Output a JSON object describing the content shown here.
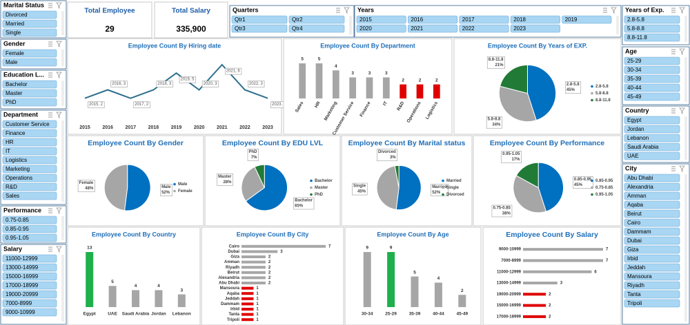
{
  "kpis": [
    {
      "title": "Total Employee",
      "value": "29"
    },
    {
      "title": "Total Salary",
      "value": "335,900"
    }
  ],
  "slicers": [
    {
      "title": "Marital Status",
      "items": [
        "Divorced",
        "Married",
        "Single"
      ]
    },
    {
      "title": "Gender",
      "items": [
        "Female",
        "Male"
      ]
    },
    {
      "title": "Education L...",
      "items": [
        "Bachelor",
        "Master",
        "PhD"
      ]
    },
    {
      "title": "Department",
      "items": [
        "Customer Service",
        "Finance",
        "HR",
        "IT",
        "Logistics",
        "Marketing",
        "Operations",
        "R&D",
        "Sales"
      ]
    },
    {
      "title": "Performance",
      "items": [
        "0.75-0.85",
        "0.85-0.95",
        "0.95-1.05"
      ]
    },
    {
      "title": "Salary",
      "items": [
        "11000-12999",
        "13000-14999",
        "15000-16999",
        "17000-18999",
        "19000-20999",
        "7000-8999",
        "9000-10999"
      ]
    },
    {
      "title": "Quarters",
      "items": [
        "Qtr1",
        "Qtr2",
        "Qtr3",
        "Qtr4"
      ]
    },
    {
      "title": "Years",
      "items": [
        "2015",
        "2016",
        "2017",
        "2018",
        "2019",
        "2020",
        "2021",
        "2022",
        "2023"
      ]
    },
    {
      "title": "Years of Exp.",
      "items": [
        "2.8-5.8",
        "5.8-8.8",
        "8.8-11.8"
      ]
    },
    {
      "title": "Age",
      "items": [
        "25-29",
        "30-34",
        "35-39",
        "40-44",
        "45-49"
      ]
    },
    {
      "title": "Country",
      "items": [
        "Egypt",
        "Jordan",
        "Lebanon",
        "Saudi Arabia",
        "UAE"
      ]
    },
    {
      "title": "City",
      "items": [
        "Abu Dhabi",
        "Alexandria",
        "Amman",
        "Aqaba",
        "Beirut",
        "Cairo",
        "Dammam",
        "Dubai",
        "Giza",
        "Irbid",
        "Jeddah",
        "Mansoura",
        "Riyadh",
        "Tanta",
        "Tripoli"
      ]
    }
  ],
  "chart_data": [
    {
      "type": "line",
      "title": "Employee Count By Hiring date",
      "categories": [
        "2015",
        "2016",
        "2017",
        "2018",
        "2019",
        "2020",
        "2021",
        "2022",
        "2023"
      ],
      "values": [
        2,
        3,
        2,
        3,
        5,
        3,
        6,
        3,
        2
      ],
      "value_labels": [
        "2015, 2",
        "2016, 3",
        "2017, 2",
        "2018, 3",
        "2019, 5",
        "2020, 3",
        "2021, 6",
        "2022, 3",
        "2023, 2"
      ],
      "color": "#2e6f8e"
    },
    {
      "type": "bar",
      "title": "Employee Count By Department",
      "categories": [
        "Sales",
        "HR",
        "Marketing",
        "Customer Service",
        "Finance",
        "IT",
        "R&D",
        "Operations",
        "Logistics"
      ],
      "values": [
        5,
        5,
        4,
        3,
        3,
        3,
        2,
        2,
        2
      ],
      "colors": [
        "#a6a6a6",
        "#a6a6a6",
        "#a6a6a6",
        "#a6a6a6",
        "#a6a6a6",
        "#a6a6a6",
        "#e00000",
        "#e00000",
        "#e00000"
      ]
    },
    {
      "type": "pie",
      "title": "Employee Count By Years of EXP.",
      "categories": [
        "2.8-5.8",
        "5.8-8.8",
        "8.8-11.8"
      ],
      "values": [
        45,
        34,
        21
      ],
      "value_labels": [
        "45%",
        "34%",
        "21%"
      ],
      "colors": [
        "#0070c0",
        "#a6a6a6",
        "#217a36"
      ],
      "legend": "right"
    },
    {
      "type": "pie",
      "title": "Employee Count By Gender",
      "categories": [
        "Male",
        "Female"
      ],
      "values": [
        52,
        48
      ],
      "value_labels": [
        "52%",
        "48%"
      ],
      "colors": [
        "#0070c0",
        "#a6a6a6"
      ],
      "legend": "right"
    },
    {
      "type": "pie",
      "title": "Employee Count By EDU LVL",
      "categories": [
        "Bachelor",
        "Master",
        "PhD"
      ],
      "values": [
        65,
        28,
        7
      ],
      "value_labels": [
        "65%",
        "28%",
        "7%"
      ],
      "colors": [
        "#0070c0",
        "#a6a6a6",
        "#217a36"
      ],
      "legend": "right"
    },
    {
      "type": "pie",
      "title": "Employee Count By Marital status",
      "categories": [
        "Married",
        "Single",
        "Divorced"
      ],
      "values": [
        52,
        45,
        3
      ],
      "value_labels": [
        "52%",
        "45%",
        "3%"
      ],
      "colors": [
        "#0070c0",
        "#a6a6a6",
        "#217a36"
      ],
      "legend": "right"
    },
    {
      "type": "pie",
      "title": "Employee Count By Performance",
      "categories": [
        "0.85-0.95",
        "0.75-0.85",
        "0.95-1.05"
      ],
      "values": [
        45,
        38,
        17
      ],
      "value_labels": [
        "45%",
        "38%",
        "17%"
      ],
      "colors": [
        "#0070c0",
        "#a6a6a6",
        "#217a36"
      ],
      "legend": "right"
    },
    {
      "type": "bar",
      "title": "Employee Count By Country",
      "categories": [
        "Egypt",
        "UAE",
        "Saudi Arabia",
        "Jordan",
        "Lebanon"
      ],
      "values": [
        13,
        5,
        4,
        4,
        3
      ],
      "colors": [
        "#1fb04c",
        "#a6a6a6",
        "#a6a6a6",
        "#a6a6a6",
        "#a6a6a6"
      ]
    },
    {
      "type": "bar",
      "orientation": "horizontal",
      "title": "Employee Count By City",
      "categories": [
        "Cairo",
        "Dubai",
        "Giza",
        "Amman",
        "Riyadh",
        "Beirut",
        "Alexandria",
        "Abu Dhabi",
        "Mansoura",
        "Aqaba",
        "Jeddah",
        "Dammam",
        "Irbid",
        "Tanta",
        "Tripoli"
      ],
      "values": [
        7,
        3,
        2,
        2,
        2,
        2,
        2,
        2,
        1,
        1,
        1,
        1,
        1,
        1,
        1
      ],
      "colors": [
        "#a6a6a6",
        "#a6a6a6",
        "#a6a6a6",
        "#a6a6a6",
        "#a6a6a6",
        "#a6a6a6",
        "#a6a6a6",
        "#a6a6a6",
        "#e00000",
        "#e00000",
        "#e00000",
        "#e00000",
        "#e00000",
        "#e00000",
        "#e00000"
      ]
    },
    {
      "type": "bar",
      "title": "Employee Count By Age",
      "categories": [
        "30-34",
        "25-29",
        "35-39",
        "40-44",
        "45-49"
      ],
      "values": [
        9,
        9,
        5,
        4,
        2
      ],
      "colors": [
        "#a6a6a6",
        "#1fb04c",
        "#a6a6a6",
        "#a6a6a6",
        "#a6a6a6"
      ]
    },
    {
      "type": "bar",
      "orientation": "horizontal",
      "title": "Employee Count By Salary",
      "categories": [
        "9000-10999",
        "7000-8999",
        "11000-12999",
        "13000-14999",
        "19000-20999",
        "15000-16999",
        "17000-18999"
      ],
      "values": [
        7,
        7,
        6,
        3,
        2,
        2,
        2
      ],
      "colors": [
        "#a6a6a6",
        "#a6a6a6",
        "#a6a6a6",
        "#a6a6a6",
        "#e00000",
        "#e00000",
        "#e00000"
      ]
    }
  ]
}
